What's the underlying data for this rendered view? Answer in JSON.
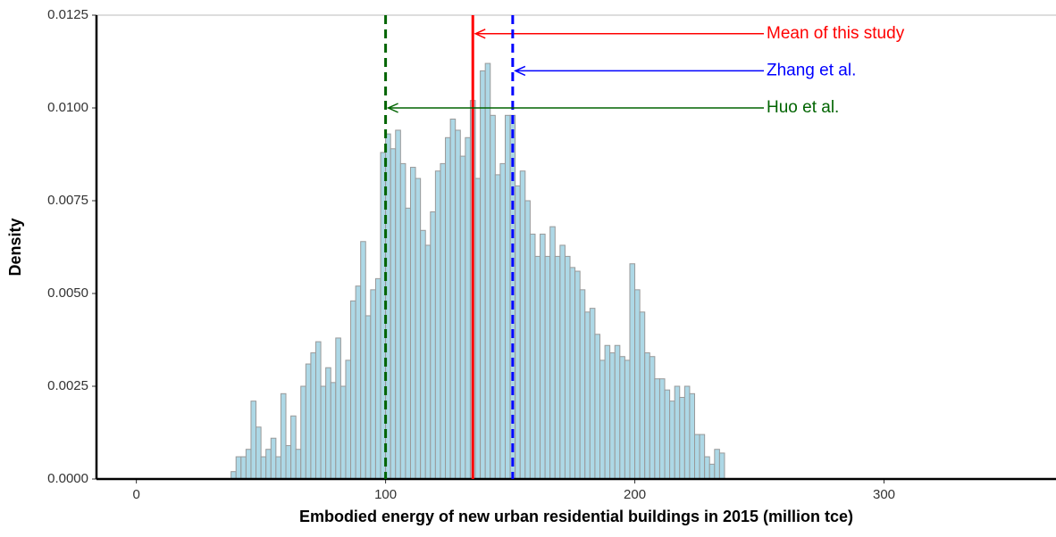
{
  "chart_data": {
    "type": "histogram",
    "x_label": "Embodied energy of new urban residential buildings in 2015 (million tce)",
    "y_label": "Density",
    "bins": [
      38,
      40,
      42,
      44,
      46,
      48,
      50,
      52,
      54,
      56,
      58,
      60,
      62,
      64,
      66,
      68,
      70,
      72,
      74,
      76,
      78,
      80,
      82,
      84,
      86,
      88,
      90,
      92,
      94,
      96,
      98,
      100,
      102,
      104,
      106,
      108,
      110,
      112,
      114,
      116,
      118,
      120,
      122,
      124,
      126,
      128,
      130,
      132,
      134,
      136,
      138,
      140,
      142,
      144,
      146,
      148,
      150,
      152,
      154,
      156,
      158,
      160,
      162,
      164,
      166,
      168,
      170,
      172,
      174,
      176,
      178,
      180,
      182,
      184,
      186,
      188,
      190,
      192,
      194,
      196,
      198,
      200,
      202,
      204,
      206,
      208,
      210,
      212,
      214,
      216,
      218,
      220,
      222,
      224,
      226,
      228,
      230,
      232,
      234,
      236
    ],
    "values": [
      0.0002,
      0.0006,
      0.0006,
      0.0008,
      0.0021,
      0.0014,
      0.0006,
      0.0008,
      0.0011,
      0.0006,
      0.0023,
      0.0009,
      0.0017,
      0.0008,
      0.0025,
      0.0031,
      0.0034,
      0.0037,
      0.0025,
      0.003,
      0.0026,
      0.0038,
      0.0025,
      0.0032,
      0.0048,
      0.0052,
      0.0064,
      0.0044,
      0.0051,
      0.0054,
      0.0088,
      0.0093,
      0.0089,
      0.0094,
      0.0085,
      0.0073,
      0.0084,
      0.0081,
      0.0067,
      0.0063,
      0.0072,
      0.0083,
      0.0085,
      0.0092,
      0.0097,
      0.0094,
      0.0087,
      0.0092,
      0.0102,
      0.0081,
      0.011,
      0.0112,
      0.0098,
      0.0082,
      0.0085,
      0.0098,
      0.0098,
      0.0079,
      0.0083,
      0.0075,
      0.0066,
      0.006,
      0.0066,
      0.006,
      0.0068,
      0.006,
      0.0063,
      0.006,
      0.0057,
      0.0056,
      0.0051,
      0.0045,
      0.0046,
      0.0039,
      0.0032,
      0.0036,
      0.0034,
      0.0036,
      0.0033,
      0.0032,
      0.0058,
      0.0051,
      0.0045,
      0.0034,
      0.0033,
      0.0027,
      0.0027,
      0.0024,
      0.0021,
      0.0025,
      0.0022,
      0.0025,
      0.0023,
      0.0012,
      0.0012,
      0.0006,
      0.0004,
      0.0008,
      0.0007
    ],
    "color": "#add8e6",
    "edge_color": "#999999",
    "xlim": [
      -16,
      369
    ],
    "xticks": [
      0,
      100,
      200,
      300
    ],
    "ylim": [
      0,
      0.0125
    ],
    "yticks": [
      {
        "value": 0,
        "label": "0.0000"
      },
      {
        "value": 0.0025,
        "label": "0.0025"
      },
      {
        "value": 0.005,
        "label": "0.0050"
      },
      {
        "value": 0.0075,
        "label": "0.0075"
      },
      {
        "value": 0.01,
        "label": "0.0100"
      },
      {
        "value": 0.0125,
        "label": "0.0125"
      }
    ],
    "reference_lines": [
      {
        "name": "Mean of this study",
        "value": 135,
        "color": "#ff0000",
        "dashed": false,
        "label_y": 0.012
      },
      {
        "name": "Zhang et al.",
        "value": 151,
        "color": "#0000ff",
        "dashed": true,
        "label_y": 0.011
      },
      {
        "name": "Huo et al.",
        "value": 100,
        "color": "#006400",
        "dashed": true,
        "label_y": 0.01
      }
    ]
  }
}
